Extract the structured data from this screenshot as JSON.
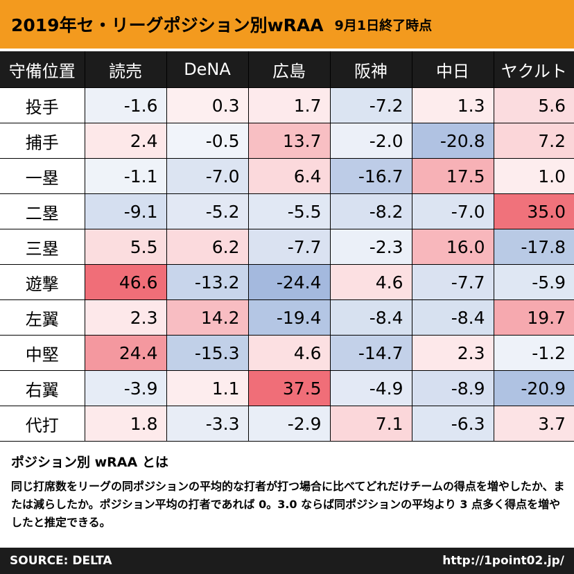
{
  "header": {
    "title": "2019年セ・リーグポジション別wRAA",
    "subtitle": "9月1日終了時点"
  },
  "chart_data": {
    "type": "table",
    "title": "2019年セ・リーグポジション別wRAA",
    "subtitle": "9月1日終了時点",
    "corner_label": "守備位置",
    "columns": [
      "読売",
      "DeNA",
      "広島",
      "阪神",
      "中日",
      "ヤクルト"
    ],
    "rows": [
      {
        "label": "投手",
        "values": [
          "-1.6",
          "0.3",
          "1.7",
          "-7.2",
          "1.3",
          "5.6"
        ]
      },
      {
        "label": "捕手",
        "values": [
          "2.4",
          "-0.5",
          "13.7",
          "-2.0",
          "-20.8",
          "7.2"
        ]
      },
      {
        "label": "一塁",
        "values": [
          "-1.1",
          "-7.0",
          "6.4",
          "-16.7",
          "17.5",
          "1.0"
        ]
      },
      {
        "label": "二塁",
        "values": [
          "-9.1",
          "-5.2",
          "-5.5",
          "-8.2",
          "-7.0",
          "35.0"
        ]
      },
      {
        "label": "三塁",
        "values": [
          "5.5",
          "6.2",
          "-7.7",
          "-2.3",
          "16.0",
          "-17.8"
        ]
      },
      {
        "label": "遊撃",
        "values": [
          "46.6",
          "-13.2",
          "-24.4",
          "4.6",
          "-7.7",
          "-5.9"
        ]
      },
      {
        "label": "左翼",
        "values": [
          "2.3",
          "14.2",
          "-19.4",
          "-8.4",
          "-8.4",
          "19.7"
        ]
      },
      {
        "label": "中堅",
        "values": [
          "24.4",
          "-15.3",
          "4.6",
          "-14.7",
          "2.3",
          "-1.2"
        ]
      },
      {
        "label": "右翼",
        "values": [
          "-3.9",
          "1.1",
          "37.5",
          "-4.9",
          "-8.9",
          "-20.9"
        ]
      },
      {
        "label": "代打",
        "values": [
          "1.8",
          "-3.3",
          "-2.9",
          "7.1",
          "-6.3",
          "3.7"
        ]
      }
    ],
    "colors": {
      "positive": "#f06e78",
      "negative": "#7f9dd0",
      "neutral": "#ffffff"
    }
  },
  "note": {
    "title": "ポジション別 wRAA とは",
    "body": "同じ打席数をリーグの同ポジションの平均的な打者が打つ場合に比べてどれだけチームの得点を増やしたか、または減らしたか。ポジション平均の打者であれば 0。3.0 ならば同ポジションの平均より 3 点多く得点を増やしたと推定できる。"
  },
  "footer": {
    "source": "SOURCE: DELTA",
    "url": "http://1point02.jp/"
  }
}
